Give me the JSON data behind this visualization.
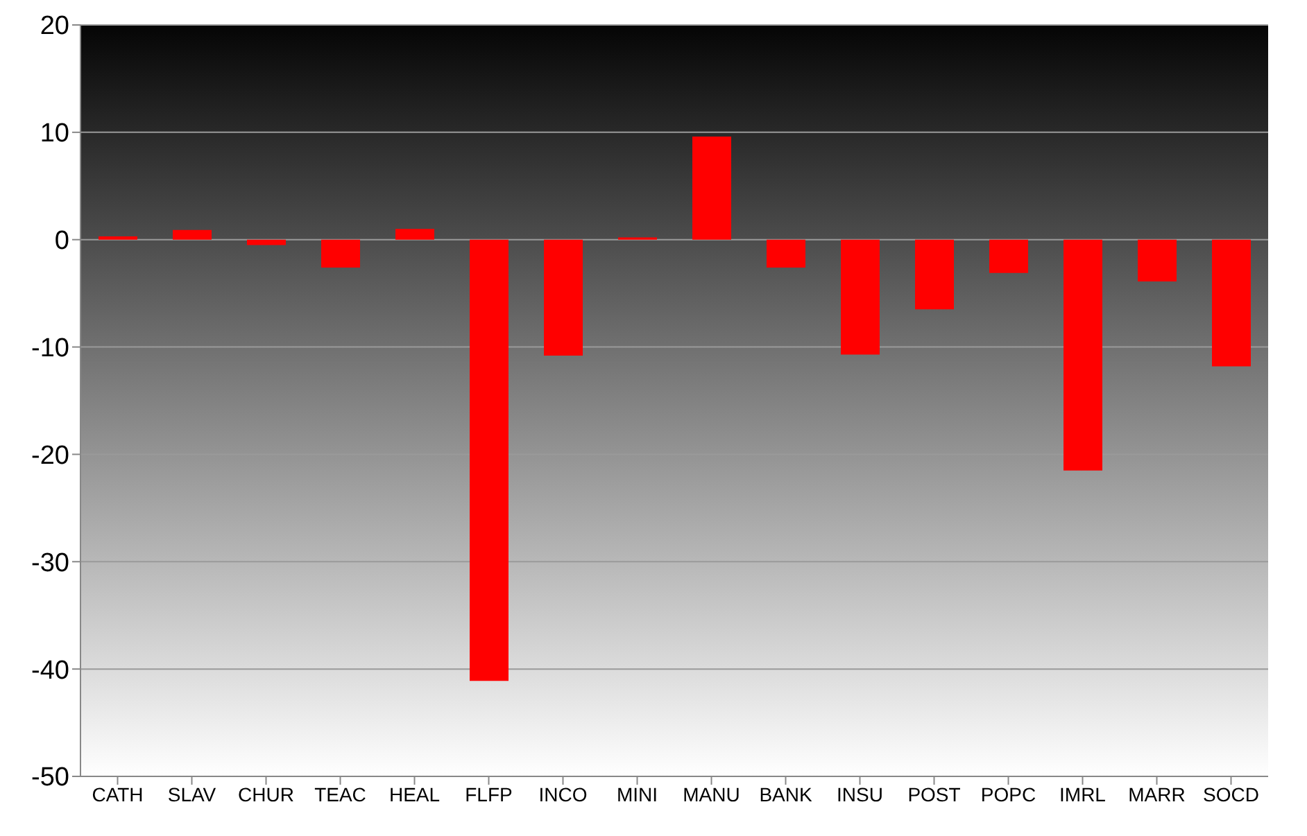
{
  "chart_data": {
    "type": "bar",
    "categories": [
      "CATH",
      "SLAV",
      "CHUR",
      "TEAC",
      "HEAL",
      "FLFP",
      "INCO",
      "MINI",
      "MANU",
      "BANK",
      "INSU",
      "POST",
      "POPC",
      "IMRL",
      "MARR",
      "SOCD"
    ],
    "values": [
      0.3,
      0.9,
      -0.5,
      -2.6,
      1.0,
      -41.1,
      -10.8,
      0.2,
      9.6,
      -2.6,
      -10.7,
      -6.5,
      -3.1,
      -21.5,
      -3.9,
      -11.8
    ],
    "color": "#ff0000",
    "ylim": [
      -50,
      20
    ],
    "yticks": [
      -50,
      -40,
      -30,
      -20,
      -10,
      0,
      10,
      20
    ],
    "grid": "y"
  }
}
